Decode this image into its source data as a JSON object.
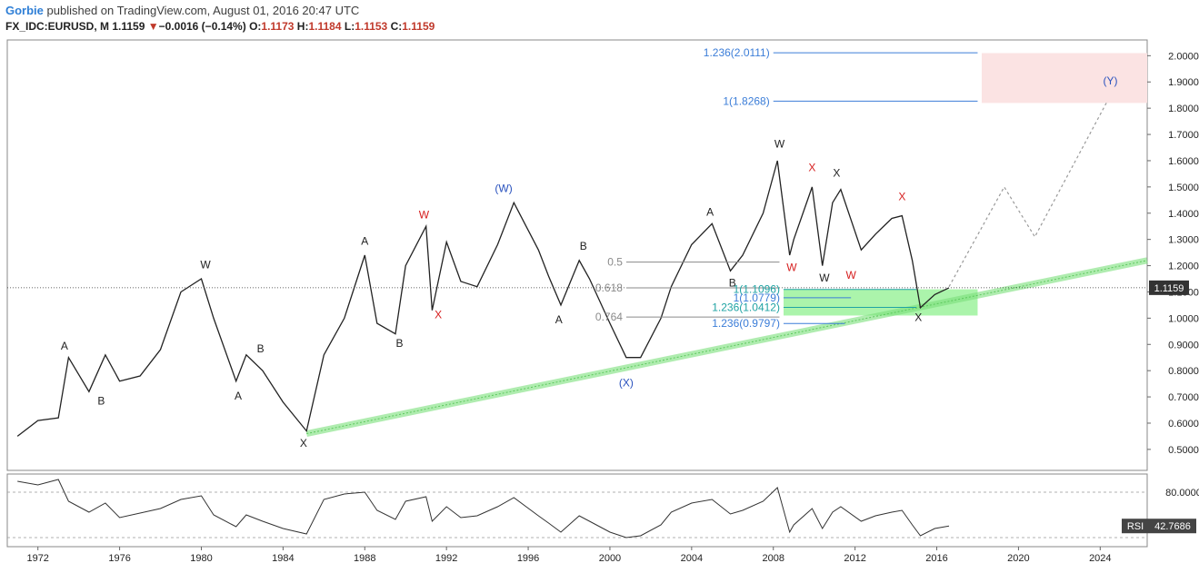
{
  "header": {
    "user": "Gorbie",
    "published": "published on TradingView.com, August 01, 2016 20:47 UTC",
    "symbol": "FX_IDC:EURUSD, M",
    "last": "1.1159",
    "change": "−0.0016 (−0.14%)",
    "o_label": "O:",
    "o_val": "1.1173",
    "h_label": "H:",
    "h_val": "1.1184",
    "l_label": "L:",
    "l_val": "1.1153",
    "c_label": "C:",
    "c_val": "1.1159"
  },
  "colors": {
    "price": "#222222",
    "wave_black": "#222222",
    "wave_red": "#d62020",
    "wave_blue": "#2a52be",
    "fib_blue": "#3b7dd8",
    "fib_teal": "#1fa3a3",
    "trend": "#7be07b",
    "target_zone": "#fbe3e3",
    "support_zone": "#8ff08f"
  },
  "chart_data": [
    {
      "type": "line",
      "title": "FX_IDC:EURUSD, M",
      "x_range": [
        1970.5,
        2026.3
      ],
      "ylim": [
        0.42,
        2.06
      ],
      "y_ticks": [
        "0.5000",
        "0.6000",
        "0.7000",
        "0.8000",
        "0.9000",
        "1.0000",
        "1.1000",
        "1.2000",
        "1.3000",
        "1.4000",
        "1.5000",
        "1.6000",
        "1.7000",
        "1.8000",
        "1.9000",
        "2.0000"
      ],
      "x_ticks": [
        "1972",
        "1976",
        "1980",
        "1984",
        "1988",
        "1992",
        "1996",
        "2000",
        "2004",
        "2008",
        "2012",
        "2016",
        "2020",
        "2024"
      ],
      "series": [
        {
          "name": "EURUSD",
          "x": [
            1971.0,
            1972.0,
            1973.0,
            1973.5,
            1974.5,
            1975.3,
            1976.0,
            1977.0,
            1978.0,
            1979.0,
            1980.0,
            1980.6,
            1981.7,
            1982.2,
            1983.0,
            1984.0,
            1985.15,
            1986.0,
            1987.0,
            1988.0,
            1988.6,
            1989.5,
            1990.0,
            1991.0,
            1991.3,
            1992.0,
            1992.7,
            1993.5,
            1994.5,
            1995.3,
            1996.5,
            1997.0,
            1997.6,
            1998.5,
            1999.0,
            2000.0,
            2000.8,
            2001.5,
            2002.5,
            2003.0,
            2004.0,
            2005.0,
            2005.9,
            2006.5,
            2007.5,
            2008.2,
            2008.8,
            2009.0,
            2009.9,
            2010.4,
            2010.9,
            2011.3,
            2012.3,
            2013.0,
            2013.8,
            2014.3,
            2014.8,
            2015.2,
            2015.9,
            2016.6
          ],
          "y": [
            0.55,
            0.61,
            0.62,
            0.85,
            0.72,
            0.86,
            0.76,
            0.78,
            0.88,
            1.1,
            1.15,
            1.0,
            0.76,
            0.86,
            0.8,
            0.68,
            0.57,
            0.86,
            1.0,
            1.24,
            0.98,
            0.94,
            1.2,
            1.35,
            1.03,
            1.29,
            1.14,
            1.12,
            1.28,
            1.44,
            1.26,
            1.16,
            1.05,
            1.22,
            1.15,
            0.98,
            0.85,
            0.85,
            1.0,
            1.12,
            1.28,
            1.36,
            1.18,
            1.24,
            1.4,
            1.6,
            1.24,
            1.3,
            1.5,
            1.2,
            1.44,
            1.49,
            1.26,
            1.32,
            1.38,
            1.39,
            1.22,
            1.04,
            1.09,
            1.1159
          ]
        },
        {
          "name": "Projection",
          "x": [
            2016.6,
            2019.3,
            2020.8,
            2024.3
          ],
          "y": [
            1.12,
            1.5,
            1.31,
            1.82
          ]
        },
        {
          "name": "Trendline",
          "x": [
            1985.15,
            2026.3
          ],
          "y": [
            0.56,
            1.22
          ]
        }
      ],
      "last_value": "1.1159",
      "waves": [
        {
          "text": "A",
          "x": 1973.3,
          "y": 0.88,
          "c": "black"
        },
        {
          "text": "B",
          "x": 1975.1,
          "y": 0.67,
          "c": "black"
        },
        {
          "text": "W",
          "x": 1980.2,
          "y": 1.19,
          "c": "black"
        },
        {
          "text": "B",
          "x": 1982.9,
          "y": 0.87,
          "c": "black"
        },
        {
          "text": "A",
          "x": 1981.8,
          "y": 0.69,
          "c": "black"
        },
        {
          "text": "X",
          "x": 1985.0,
          "y": 0.51,
          "c": "black"
        },
        {
          "text": "A",
          "x": 1988.0,
          "y": 1.28,
          "c": "black"
        },
        {
          "text": "B",
          "x": 1989.7,
          "y": 0.89,
          "c": "black"
        },
        {
          "text": "W",
          "x": 1990.9,
          "y": 1.38,
          "c": "red"
        },
        {
          "text": "X",
          "x": 1991.6,
          "y": 1.0,
          "c": "red"
        },
        {
          "text": "(W)",
          "x": 1994.8,
          "y": 1.48,
          "c": "blue"
        },
        {
          "text": "B",
          "x": 1998.7,
          "y": 1.26,
          "c": "black"
        },
        {
          "text": "A",
          "x": 1997.5,
          "y": 0.98,
          "c": "black"
        },
        {
          "text": "(X)",
          "x": 2000.8,
          "y": 0.74,
          "c": "blue"
        },
        {
          "text": "A",
          "x": 2004.9,
          "y": 1.39,
          "c": "black"
        },
        {
          "text": "B",
          "x": 2006.0,
          "y": 1.12,
          "c": "black"
        },
        {
          "text": "W",
          "x": 2008.3,
          "y": 1.65,
          "c": "black"
        },
        {
          "text": "W",
          "x": 2008.9,
          "y": 1.18,
          "c": "red"
        },
        {
          "text": "X",
          "x": 2009.9,
          "y": 1.56,
          "c": "red"
        },
        {
          "text": "W",
          "x": 2010.5,
          "y": 1.14,
          "c": "black"
        },
        {
          "text": "X",
          "x": 2011.1,
          "y": 1.54,
          "c": "black"
        },
        {
          "text": "W",
          "x": 2011.8,
          "y": 1.15,
          "c": "red"
        },
        {
          "text": "X",
          "x": 2014.3,
          "y": 1.45,
          "c": "red"
        },
        {
          "text": "X",
          "x": 2015.1,
          "y": 0.99,
          "c": "black"
        },
        {
          "text": "(Y)",
          "x": 2024.5,
          "y": 1.89,
          "c": "blue"
        }
      ],
      "fib_levels": [
        {
          "text": "1.236(2.0111)",
          "y": 2.0111,
          "x0": 2008.0,
          "x1": 2018.0,
          "c": "blue"
        },
        {
          "text": "1(1.8268)",
          "y": 1.8268,
          "x0": 2008.0,
          "x1": 2018.0,
          "c": "blue"
        },
        {
          "text": "0.5",
          "y": 1.2138,
          "x0": 2000.8,
          "x1": 2008.3,
          "c": "gray"
        },
        {
          "text": "0.618",
          "y": 1.1155,
          "x0": 2000.8,
          "x1": 2008.3,
          "c": "gray"
        },
        {
          "text": "0.764",
          "y": 1.0045,
          "x0": 2000.8,
          "x1": 2008.3,
          "c": "gray"
        },
        {
          "text": "1(1.1096)",
          "y": 1.1096,
          "x0": 2008.5,
          "x1": 2015.0,
          "c": "teal"
        },
        {
          "text": "1(1.0779)",
          "y": 1.0779,
          "x0": 2008.5,
          "x1": 2011.8,
          "c": "blue"
        },
        {
          "text": "1.236(1.0412)",
          "y": 1.0412,
          "x0": 2008.5,
          "x1": 2015.0,
          "c": "teal"
        },
        {
          "text": "1.236(0.9797)",
          "y": 0.9797,
          "x0": 2008.5,
          "x1": 2011.5,
          "c": "blue"
        }
      ],
      "zones": [
        {
          "name": "target",
          "x0": 2018.2,
          "x1": 2026.3,
          "y0": 1.82,
          "y1": 2.01,
          "c": "target_zone"
        },
        {
          "name": "support",
          "x0": 2008.5,
          "x1": 2018.0,
          "y0": 1.01,
          "y1": 1.11,
          "c": "support_zone"
        }
      ]
    },
    {
      "type": "line",
      "title": "RSI",
      "label": "RSI",
      "last_value": "42.7686",
      "level_labels": [
        "80.0000"
      ],
      "levels": [
        80,
        30
      ],
      "ylim": [
        20,
        100
      ],
      "x": [
        1971.0,
        1972.0,
        1973.0,
        1973.5,
        1974.5,
        1975.3,
        1976.0,
        1977.0,
        1978.0,
        1979.0,
        1980.0,
        1980.6,
        1981.7,
        1982.2,
        1983.0,
        1984.0,
        1985.15,
        1986.0,
        1987.0,
        1988.0,
        1988.6,
        1989.5,
        1990.0,
        1991.0,
        1991.3,
        1992.0,
        1992.7,
        1993.5,
        1994.5,
        1995.3,
        1996.5,
        1997.0,
        1997.6,
        1998.5,
        1999.0,
        2000.0,
        2000.8,
        2001.5,
        2002.5,
        2003.0,
        2004.0,
        2005.0,
        2005.9,
        2006.5,
        2007.5,
        2008.2,
        2008.8,
        2009.0,
        2009.9,
        2010.4,
        2010.9,
        2011.3,
        2012.3,
        2013.0,
        2013.8,
        2014.3,
        2014.8,
        2015.2,
        2015.9,
        2016.6
      ],
      "values": [
        92,
        88,
        94,
        70,
        58,
        68,
        52,
        57,
        62,
        72,
        76,
        55,
        42,
        55,
        48,
        40,
        34,
        72,
        78,
        80,
        60,
        50,
        70,
        75,
        48,
        64,
        52,
        54,
        64,
        74,
        54,
        46,
        36,
        54,
        48,
        36,
        30,
        32,
        44,
        58,
        68,
        72,
        56,
        60,
        70,
        85,
        36,
        44,
        62,
        40,
        58,
        64,
        48,
        54,
        58,
        60,
        44,
        32,
        40,
        42.77
      ]
    }
  ]
}
